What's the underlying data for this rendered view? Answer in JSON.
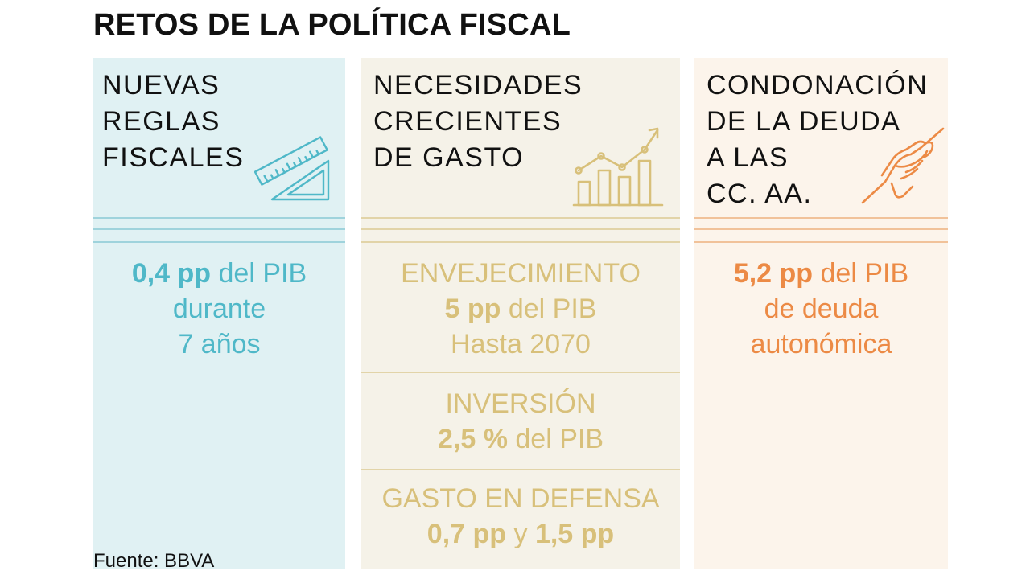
{
  "title": "RETOS DE LA POLÍTICA FISCAL",
  "colors": {
    "teal": "#4fb8c8",
    "gold": "#d8c07a",
    "orange": "#ec8a45",
    "teal_bg": "#e0f1f3",
    "gold_bg": "#f5f2e8",
    "orange_bg": "#fcf4eb"
  },
  "columns": [
    {
      "heading": [
        "NUEVAS",
        "REGLAS",
        "FISCALES"
      ],
      "icon": "ruler-set-square-icon",
      "stats": [
        {
          "bold": "0,4 pp",
          "rest": " del PIB",
          "lines": [
            "durante",
            "7 años"
          ]
        }
      ]
    },
    {
      "heading": [
        "NECESIDADES",
        "CRECIENTES",
        "DE GASTO"
      ],
      "icon": "rising-bar-chart-icon",
      "stats": [
        {
          "label": "ENVEJECIMIENTO",
          "bold": "5 pp",
          "rest": " del PIB",
          "extra": "Hasta 2070"
        },
        {
          "label": "INVERSIÓN",
          "bold": "2,5 %",
          "rest": " del PIB"
        },
        {
          "label": "GASTO EN DEFENSA",
          "bold": "0,7 pp",
          "mid": " y ",
          "bold2": "1,5 pp"
        }
      ]
    },
    {
      "heading": [
        "CONDONACIÓN",
        "DE LA DEUDA",
        "A LAS",
        "CC. AA."
      ],
      "icon": "handshake-icon",
      "stats": [
        {
          "bold": "5,2 pp",
          "rest": " del PIB",
          "lines": [
            "de deuda",
            "autonómica"
          ]
        }
      ]
    }
  ],
  "source": "Fuente: BBVA"
}
